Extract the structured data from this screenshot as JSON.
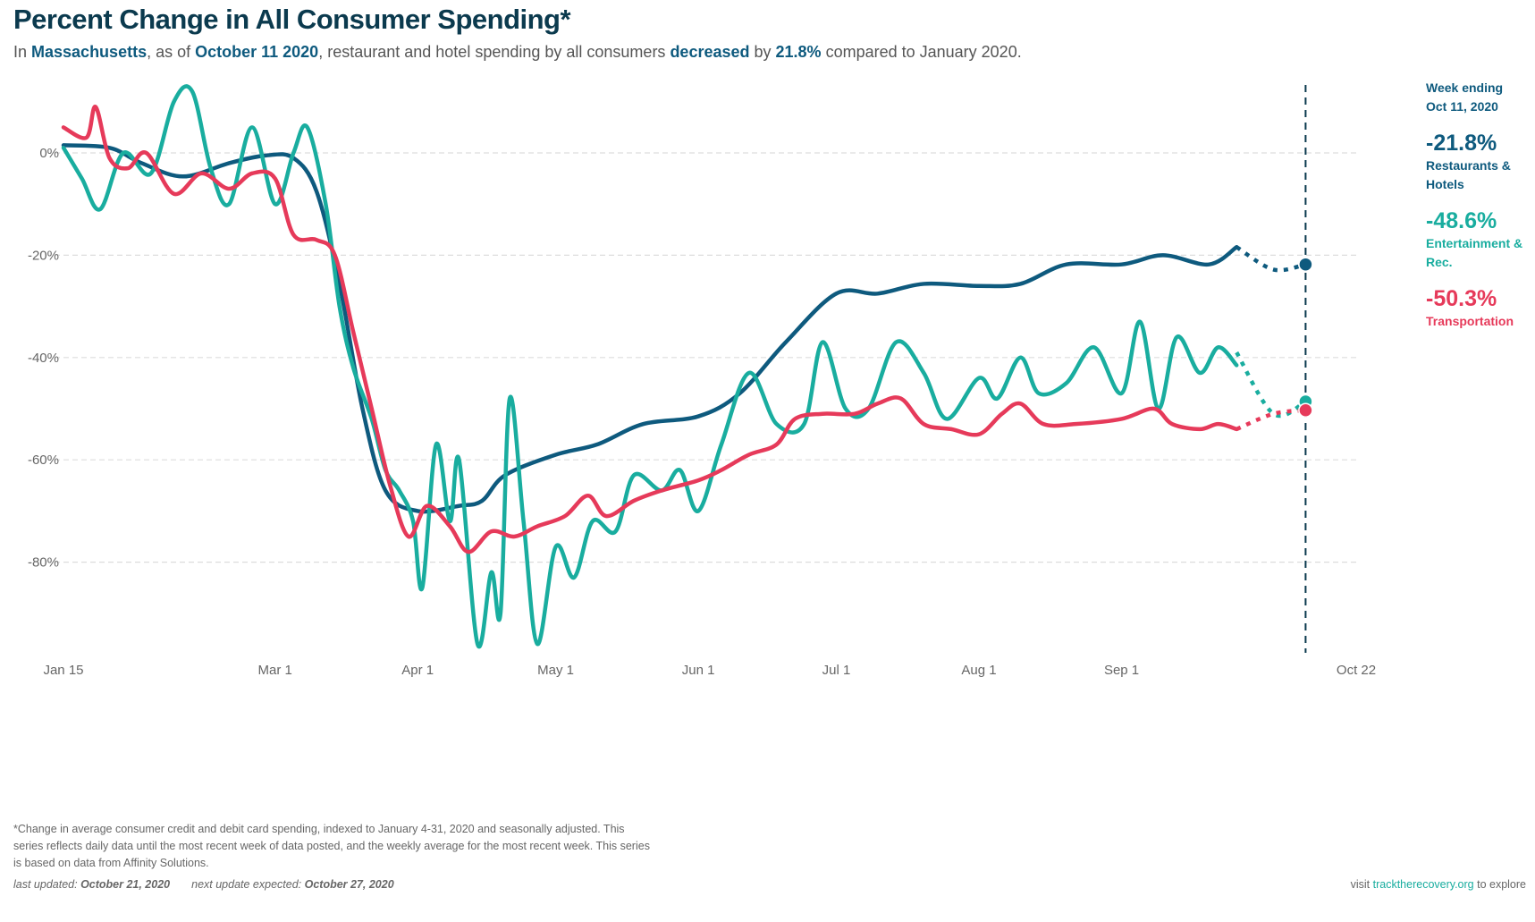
{
  "header": {
    "title": "Percent Change in All Consumer Spending*",
    "sub": {
      "p1": "In ",
      "state": "Massachusetts",
      "p2": ", as of ",
      "date": "October 11 2020",
      "p3": ", restaurant and hotel spending by all consumers ",
      "dir": "decreased",
      "p4": " by ",
      "pct": "21.8%",
      "p5": " compared to January 2020."
    }
  },
  "legend": {
    "heading_1": "Week ending",
    "heading_2": "Oct 11, 2020",
    "items": [
      {
        "value": "-21.8%",
        "label": "Restaurants & Hotels",
        "color": "#0e5a7e"
      },
      {
        "value": "-48.6%",
        "label": "Entertainment & Rec.",
        "color": "#19ad9f"
      },
      {
        "value": "-50.3%",
        "label": "Transportation",
        "color": "#e63a5a"
      }
    ]
  },
  "chart_data": {
    "type": "line",
    "xlim": [
      "2020-01-15",
      "2020-10-22"
    ],
    "ylim": [
      -98,
      14
    ],
    "grid": true,
    "yticks": [
      {
        "v": 0,
        "label": "0%"
      },
      {
        "v": -20,
        "label": "-20%"
      },
      {
        "v": -40,
        "label": "-40%"
      },
      {
        "v": -60,
        "label": "-60%"
      },
      {
        "v": -80,
        "label": "-80%"
      }
    ],
    "xticks": [
      {
        "d": "2020-01-15",
        "label": "Jan 15"
      },
      {
        "d": "2020-03-01",
        "label": "Mar 1"
      },
      {
        "d": "2020-04-01",
        "label": "Apr 1"
      },
      {
        "d": "2020-05-01",
        "label": "May 1"
      },
      {
        "d": "2020-06-01",
        "label": "Jun 1"
      },
      {
        "d": "2020-07-01",
        "label": "Jul 1"
      },
      {
        "d": "2020-08-01",
        "label": "Aug 1"
      },
      {
        "d": "2020-09-01",
        "label": "Sep 1"
      },
      {
        "d": "2020-10-22",
        "label": "Oct 22"
      }
    ],
    "marker_date": "2020-10-11",
    "series": [
      {
        "name": "Restaurants & Hotels",
        "color": "#0e5a7e",
        "daily": [
          [
            "2020-01-15",
            1.5
          ],
          [
            "2020-01-25",
            1
          ],
          [
            "2020-02-01",
            -2
          ],
          [
            "2020-02-10",
            -4.6
          ],
          [
            "2020-02-20",
            -2
          ],
          [
            "2020-02-28",
            -0.5
          ],
          [
            "2020-03-05",
            -1
          ],
          [
            "2020-03-10",
            -7.5
          ],
          [
            "2020-03-15",
            -25.6
          ],
          [
            "2020-03-20",
            -50
          ],
          [
            "2020-03-25",
            -66
          ],
          [
            "2020-04-01",
            -70
          ],
          [
            "2020-04-10",
            -69
          ],
          [
            "2020-04-15",
            -68
          ],
          [
            "2020-04-20",
            -63
          ],
          [
            "2020-05-01",
            -59
          ],
          [
            "2020-05-10",
            -57
          ],
          [
            "2020-05-20",
            -53
          ],
          [
            "2020-06-01",
            -51.5
          ],
          [
            "2020-06-10",
            -47
          ],
          [
            "2020-06-20",
            -37
          ],
          [
            "2020-07-01",
            -27.5
          ],
          [
            "2020-07-10",
            -27.5
          ],
          [
            "2020-07-20",
            -25.6
          ],
          [
            "2020-08-01",
            -26
          ],
          [
            "2020-08-10",
            -25.6
          ],
          [
            "2020-08-20",
            -21.8
          ],
          [
            "2020-09-01",
            -21.8
          ],
          [
            "2020-09-10",
            -20
          ],
          [
            "2020-09-20",
            -21.8
          ],
          [
            "2020-09-26",
            -18.4
          ]
        ],
        "weekly": [
          [
            "2020-09-26",
            -18.4
          ],
          [
            "2020-10-04",
            -22.8
          ],
          [
            "2020-10-11",
            -21.8
          ]
        ]
      },
      {
        "name": "Entertainment & Rec.",
        "color": "#19ad9f",
        "daily": [
          [
            "2020-01-15",
            1
          ],
          [
            "2020-01-19",
            -5
          ],
          [
            "2020-01-23",
            -11
          ],
          [
            "2020-01-28",
            0
          ],
          [
            "2020-02-03",
            -4
          ],
          [
            "2020-02-08",
            10
          ],
          [
            "2020-02-12",
            12
          ],
          [
            "2020-02-16",
            -3
          ],
          [
            "2020-02-20",
            -10
          ],
          [
            "2020-02-25",
            5
          ],
          [
            "2020-03-01",
            -10
          ],
          [
            "2020-03-05",
            0
          ],
          [
            "2020-03-08",
            5
          ],
          [
            "2020-03-12",
            -10
          ],
          [
            "2020-03-15",
            -30
          ],
          [
            "2020-03-18",
            -42
          ],
          [
            "2020-03-22",
            -52
          ],
          [
            "2020-03-25",
            -62
          ],
          [
            "2020-03-28",
            -66
          ],
          [
            "2020-03-31",
            -72
          ],
          [
            "2020-04-02",
            -85
          ],
          [
            "2020-04-05",
            -57
          ],
          [
            "2020-04-08",
            -72
          ],
          [
            "2020-04-10",
            -60
          ],
          [
            "2020-04-14",
            -96
          ],
          [
            "2020-04-17",
            -82
          ],
          [
            "2020-04-19",
            -90
          ],
          [
            "2020-04-21",
            -48
          ],
          [
            "2020-04-24",
            -72
          ],
          [
            "2020-04-27",
            -96
          ],
          [
            "2020-05-01",
            -77
          ],
          [
            "2020-05-05",
            -83
          ],
          [
            "2020-05-09",
            -72
          ],
          [
            "2020-05-14",
            -74
          ],
          [
            "2020-05-18",
            -63
          ],
          [
            "2020-05-24",
            -66
          ],
          [
            "2020-05-28",
            -62
          ],
          [
            "2020-06-01",
            -70
          ],
          [
            "2020-06-06",
            -57
          ],
          [
            "2020-06-12",
            -43
          ],
          [
            "2020-06-18",
            -53
          ],
          [
            "2020-06-24",
            -53
          ],
          [
            "2020-06-28",
            -37
          ],
          [
            "2020-07-03",
            -50
          ],
          [
            "2020-07-08",
            -50
          ],
          [
            "2020-07-14",
            -37
          ],
          [
            "2020-07-20",
            -43
          ],
          [
            "2020-07-25",
            -52
          ],
          [
            "2020-08-01",
            -44
          ],
          [
            "2020-08-05",
            -48
          ],
          [
            "2020-08-10",
            -40
          ],
          [
            "2020-08-14",
            -47
          ],
          [
            "2020-08-20",
            -45
          ],
          [
            "2020-08-26",
            -38
          ],
          [
            "2020-09-01",
            -47
          ],
          [
            "2020-09-05",
            -33
          ],
          [
            "2020-09-09",
            -50
          ],
          [
            "2020-09-13",
            -36
          ],
          [
            "2020-09-18",
            -43
          ],
          [
            "2020-09-22",
            -38
          ],
          [
            "2020-09-26",
            -41.5
          ]
        ],
        "weekly": [
          [
            "2020-09-26",
            -39
          ],
          [
            "2020-10-04",
            -51
          ],
          [
            "2020-10-11",
            -48.6
          ]
        ]
      },
      {
        "name": "Transportation",
        "color": "#e63a5a",
        "daily": [
          [
            "2020-01-15",
            5
          ],
          [
            "2020-01-20",
            3
          ],
          [
            "2020-01-22",
            9
          ],
          [
            "2020-01-25",
            -1
          ],
          [
            "2020-01-29",
            -3
          ],
          [
            "2020-02-02",
            0
          ],
          [
            "2020-02-08",
            -8
          ],
          [
            "2020-02-14",
            -4
          ],
          [
            "2020-02-20",
            -7
          ],
          [
            "2020-02-25",
            -4
          ],
          [
            "2020-03-01",
            -5
          ],
          [
            "2020-03-05",
            -16
          ],
          [
            "2020-03-10",
            -17
          ],
          [
            "2020-03-14",
            -20
          ],
          [
            "2020-03-18",
            -35
          ],
          [
            "2020-03-22",
            -50
          ],
          [
            "2020-03-26",
            -65
          ],
          [
            "2020-03-30",
            -75
          ],
          [
            "2020-04-03",
            -69
          ],
          [
            "2020-04-08",
            -73
          ],
          [
            "2020-04-12",
            -78
          ],
          [
            "2020-04-17",
            -74
          ],
          [
            "2020-04-22",
            -75
          ],
          [
            "2020-04-27",
            -73
          ],
          [
            "2020-05-03",
            -71
          ],
          [
            "2020-05-08",
            -67
          ],
          [
            "2020-05-12",
            -71
          ],
          [
            "2020-05-18",
            -68
          ],
          [
            "2020-05-24",
            -66
          ],
          [
            "2020-06-01",
            -64
          ],
          [
            "2020-06-06",
            -62
          ],
          [
            "2020-06-12",
            -59
          ],
          [
            "2020-06-18",
            -57
          ],
          [
            "2020-06-22",
            -52
          ],
          [
            "2020-06-28",
            -51
          ],
          [
            "2020-07-05",
            -51
          ],
          [
            "2020-07-10",
            -49
          ],
          [
            "2020-07-15",
            -48
          ],
          [
            "2020-07-20",
            -53
          ],
          [
            "2020-07-26",
            -54
          ],
          [
            "2020-08-01",
            -55
          ],
          [
            "2020-08-06",
            -51
          ],
          [
            "2020-08-10",
            -49
          ],
          [
            "2020-08-15",
            -53
          ],
          [
            "2020-08-22",
            -53
          ],
          [
            "2020-09-01",
            -52
          ],
          [
            "2020-09-08",
            -50
          ],
          [
            "2020-09-12",
            -53
          ],
          [
            "2020-09-18",
            -54
          ],
          [
            "2020-09-22",
            -53
          ],
          [
            "2020-09-26",
            -54
          ]
        ],
        "weekly": [
          [
            "2020-09-26",
            -54
          ],
          [
            "2020-10-04",
            -51
          ],
          [
            "2020-10-11",
            -50.3
          ]
        ]
      }
    ]
  },
  "footer": {
    "note": "*Change in average consumer credit and debit card spending, indexed to January 4-31, 2020 and seasonally adjusted. This series reflects daily data until the most recent week of data posted, and the weekly average for the most recent week. This series is based on data from Affinity Solutions.",
    "last_label": "last updated: ",
    "last_date": "October 21, 2020",
    "next_label": "next update expected: ",
    "next_date": "October 27, 2020",
    "visit_pre": "visit ",
    "visit_link": "tracktherecovery.org",
    "visit_post": " to explore"
  }
}
